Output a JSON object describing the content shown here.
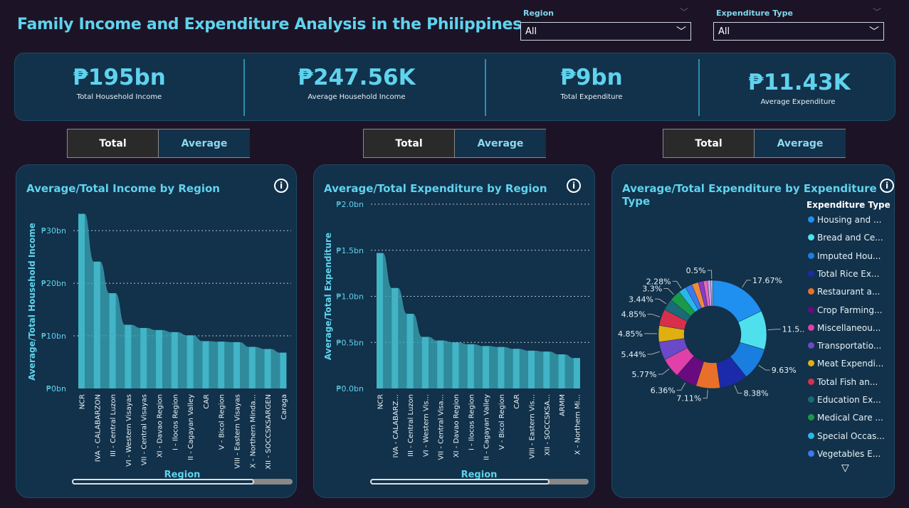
{
  "title": "Family Income and Expenditure Analysis in the Philippines",
  "filters": [
    {
      "label": "Region",
      "value": "All"
    },
    {
      "label": "Expenditure Type",
      "value": "All"
    }
  ],
  "kpis": [
    {
      "value": "₱195bn",
      "label": "Total Household Income"
    },
    {
      "value": "₱247.56K",
      "label": "Average Household Income"
    },
    {
      "value": "₱9bn",
      "label": "Total Expenditure"
    },
    {
      "value": "₱11.43K",
      "label": "Average Expenditure"
    }
  ],
  "toggles": {
    "total": "Total",
    "average": "Average"
  },
  "cards": {
    "income": {
      "title": "Average/Total Income by Region"
    },
    "expenditure": {
      "title": "Average/Total Expenditure by Region"
    },
    "type": {
      "title": "Average/Total Expenditure by Expenditure Type"
    }
  },
  "colors": {
    "accent": "#5fd3ee",
    "bar": "#4fc4d8",
    "panel": "#12314a"
  },
  "chart_data": [
    {
      "type": "area",
      "title": "Average/Total Income by Region",
      "xlabel": "Region",
      "ylabel": "Average/Total Household Income",
      "ylim": [
        0,
        33
      ],
      "yticks": [
        "₱0bn",
        "₱10bn",
        "₱20bn",
        "₱30bn"
      ],
      "ytick_values": [
        0,
        10,
        20,
        30
      ],
      "categories": [
        "NCR",
        "IVA - CALABARZON",
        "III - Central Luzon",
        "VI - Western Visayas",
        "VII - Central Visayas",
        "XI - Davao Region",
        "I - Ilocos Region",
        "II - Cagayan Valley",
        "CAR",
        "V - Bicol Region",
        "VIII - Eastern Visayas",
        "X - Northern Minda...",
        "XII - SOCCSKSARGEN",
        "Caraga"
      ],
      "values": [
        33.2,
        24.1,
        18.1,
        12.1,
        11.5,
        11.1,
        10.7,
        10.1,
        9.0,
        8.9,
        8.8,
        7.9,
        7.5,
        6.8
      ]
    },
    {
      "type": "area",
      "title": "Average/Total Expenditure by Region",
      "xlabel": "Region",
      "ylabel": "Average/Total Expenditure",
      "ylim": [
        0,
        2.0
      ],
      "yticks": [
        "₱0.0bn",
        "₱0.5bn",
        "₱1.0bn",
        "₱1.5bn",
        "₱2.0bn"
      ],
      "ytick_values": [
        0,
        0.5,
        1.0,
        1.5,
        2.0
      ],
      "categories": [
        "NCR",
        "IVA - CALABARZ...",
        "III - Central Luzon",
        "VI - Western Vis...",
        "VII - Central Visa...",
        "XI - Davao Region",
        "I - Ilocos Region",
        "II - Cagayan Valley",
        "V - Bicol Region",
        "CAR",
        "VIII - Eastern Vis...",
        "XII - SOCCSKSA...",
        "ARMM",
        "X - Northern Mi..."
      ],
      "values": [
        1.47,
        1.09,
        0.81,
        0.56,
        0.52,
        0.5,
        0.48,
        0.46,
        0.45,
        0.43,
        0.41,
        0.4,
        0.37,
        0.33
      ]
    },
    {
      "type": "pie",
      "title": "Average/Total Expenditure by Expenditure Type",
      "legend_title": "Expenditure Type",
      "legend_position": "right",
      "slices": [
        {
          "label": "Housing and ...",
          "value": 17.67,
          "display": "17.67%",
          "color": "#1f8ff0"
        },
        {
          "label": "Bread and Ce...",
          "value": 11.5,
          "display": "11.5...",
          "color": "#4fe0ee"
        },
        {
          "label": "Imputed Hou...",
          "value": 9.63,
          "display": "9.63%",
          "color": "#1a7ee0"
        },
        {
          "label": "Total Rice Ex...",
          "value": 8.38,
          "display": "8.38%",
          "color": "#1a2aa8"
        },
        {
          "label": "Restaurant a...",
          "value": 7.11,
          "display": "7.11%",
          "color": "#e8702a"
        },
        {
          "label": "Crop Farming...",
          "value": 6.36,
          "display": "6.36%",
          "color": "#6a0a80"
        },
        {
          "label": "Miscellaneou...",
          "value": 5.77,
          "display": "5.77%",
          "color": "#e040a8"
        },
        {
          "label": "Transportatio...",
          "value": 5.44,
          "display": "5.44%",
          "color": "#6a4ac8"
        },
        {
          "label": "Meat Expendi...",
          "value": 4.85,
          "display": "4.85%",
          "color": "#e0b010"
        },
        {
          "label": "Total Fish an...",
          "value": 4.85,
          "display": "4.85%",
          "color": "#d8304a"
        },
        {
          "label": "Education Ex...",
          "value": 3.44,
          "display": "3.44%",
          "color": "#1a6a78"
        },
        {
          "label": "Medical Care ...",
          "value": 3.3,
          "display": "3.3%",
          "color": "#1a9a48"
        },
        {
          "label": "Special Occas...",
          "value": 2.28,
          "display": "2.28%",
          "color": "#28b8e8"
        },
        {
          "label": "Vegetables E...",
          "value": 2.0,
          "display": "",
          "color": "#3a7af0"
        },
        {
          "label": "",
          "value": 2.0,
          "display": "",
          "color": "#f08a3a"
        },
        {
          "label": "",
          "value": 1.5,
          "display": "",
          "color": "#8a3ac8"
        },
        {
          "label": "",
          "value": 1.2,
          "display": "",
          "color": "#e868b8"
        },
        {
          "label": "",
          "value": 1.0,
          "display": "",
          "color": "#c8a0f0"
        },
        {
          "label": "",
          "value": 0.5,
          "display": "0.5%",
          "color": "#d0d0d0"
        }
      ]
    }
  ]
}
